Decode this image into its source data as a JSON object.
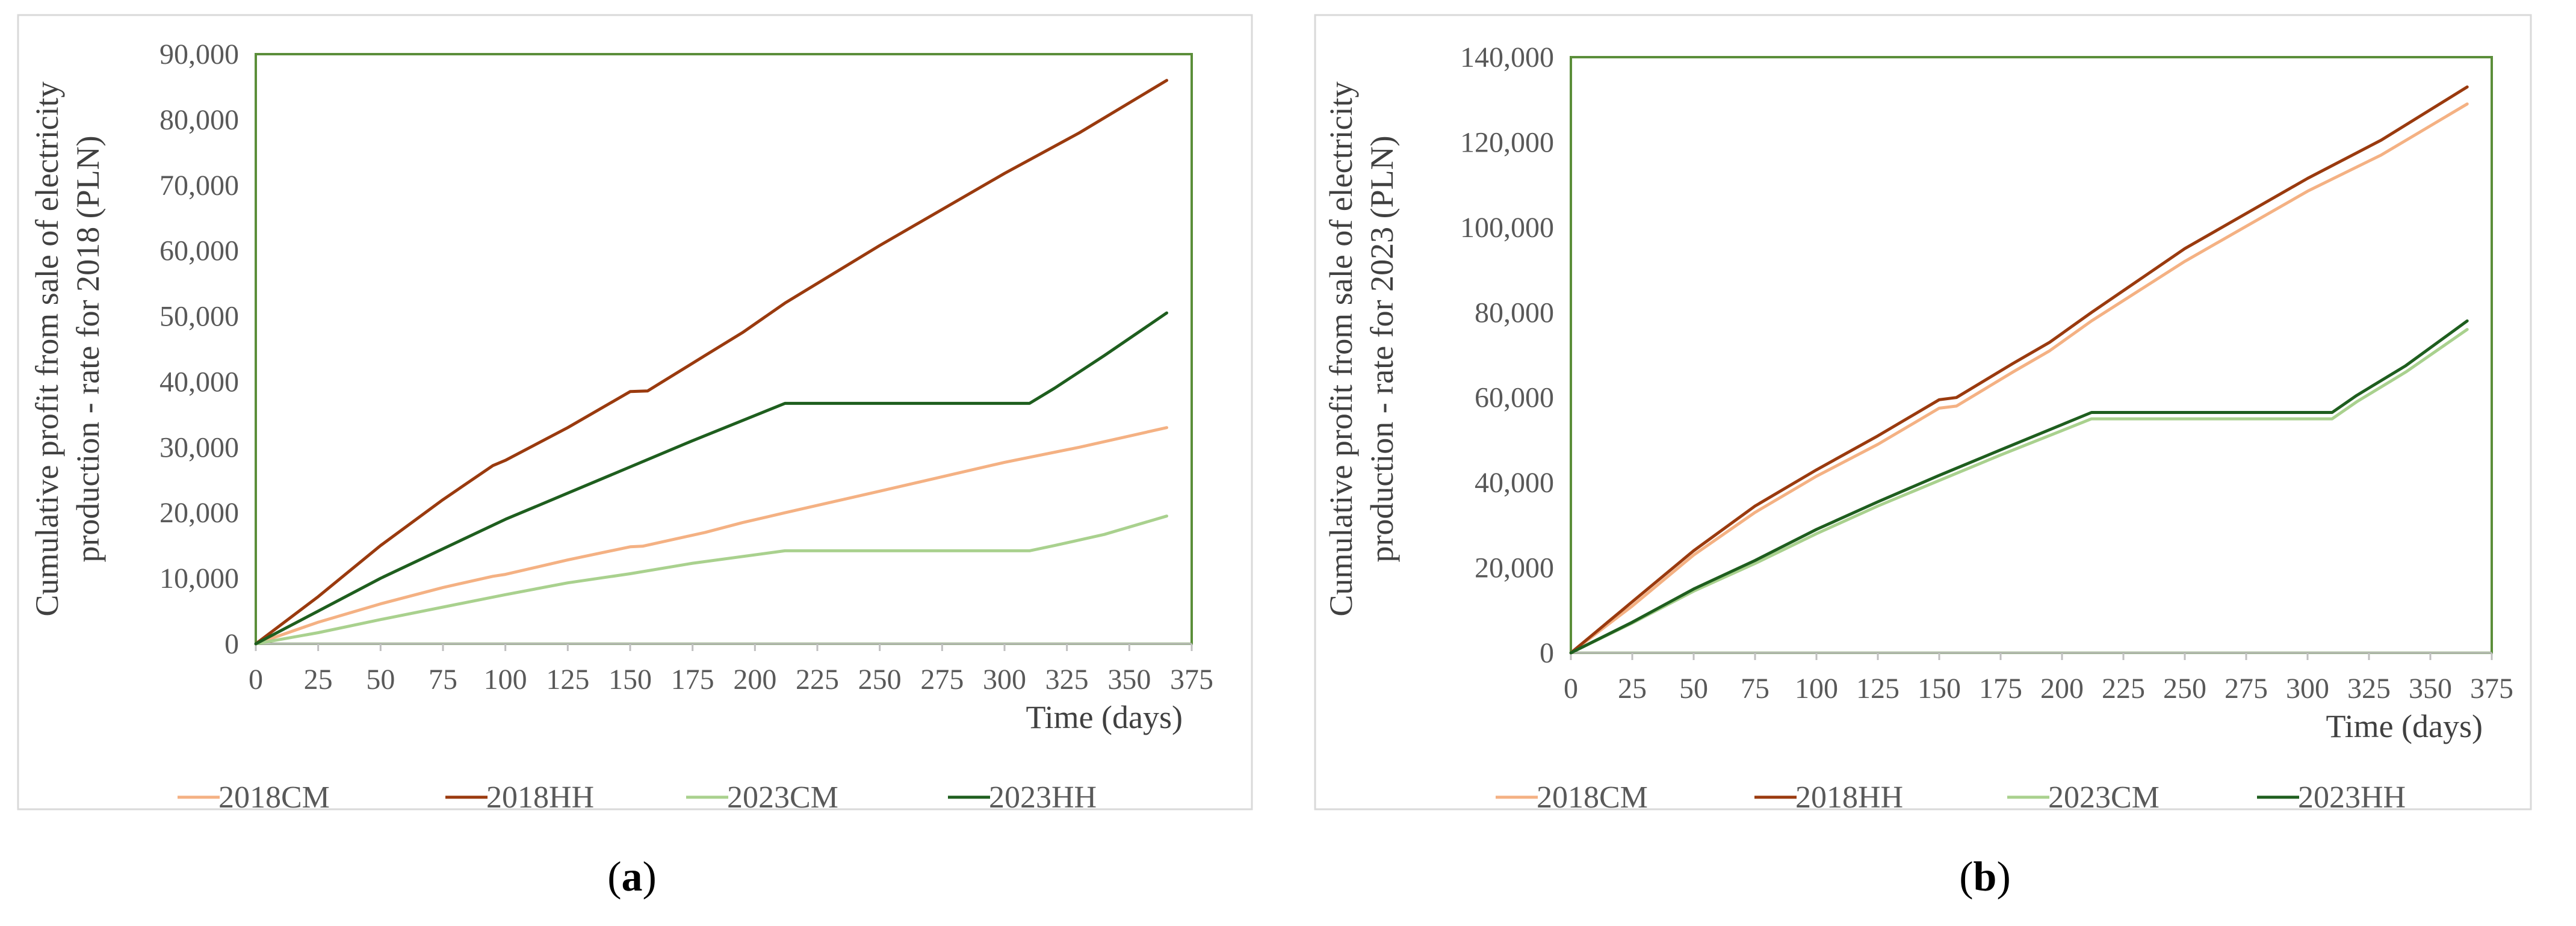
{
  "chart_data": [
    {
      "panel": "a",
      "type": "line",
      "caption_letter": "a",
      "title": "",
      "ylabel_line1": "Cumulative profit from sale of electricity",
      "ylabel_line2": "production - rate for 2018 (PLN)",
      "xlabel": "Time (days)",
      "xlim": [
        0,
        375
      ],
      "ylim": [
        0,
        90000
      ],
      "xticks": [
        0,
        25,
        50,
        75,
        100,
        125,
        150,
        175,
        200,
        225,
        250,
        275,
        300,
        325,
        350,
        375
      ],
      "xtick_labels": [
        "0",
        "25",
        "50",
        "75",
        "100",
        "125",
        "150",
        "175",
        "200",
        "225",
        "250",
        "275",
        "300",
        "325",
        "350",
        "375"
      ],
      "yticks": [
        0,
        10000,
        20000,
        30000,
        40000,
        50000,
        60000,
        70000,
        80000,
        90000
      ],
      "ytick_labels": [
        "0",
        "10,000",
        "20,000",
        "30,000",
        "40,000",
        "50,000",
        "60,000",
        "70,000",
        "80,000",
        "90,000"
      ],
      "legend_position": "bottom",
      "series": [
        {
          "name": "2018CM",
          "color": "#F4B183",
          "x": [
            0,
            25,
            50,
            75,
            95,
            100,
            125,
            150,
            155,
            180,
            195,
            212,
            250,
            300,
            330,
            365
          ],
          "y": [
            0,
            3300,
            6100,
            8600,
            10300,
            10600,
            12800,
            14800,
            14900,
            17000,
            18500,
            20000,
            23300,
            27700,
            30000,
            33000
          ]
        },
        {
          "name": "2018HH",
          "color": "#9A3A0E",
          "x": [
            0,
            25,
            50,
            75,
            95,
            100,
            125,
            150,
            157,
            180,
            195,
            212,
            250,
            300,
            330,
            365
          ],
          "y": [
            0,
            7200,
            15000,
            22000,
            27200,
            28000,
            33000,
            38500,
            38600,
            44000,
            47500,
            52000,
            60800,
            71800,
            78000,
            86000
          ]
        },
        {
          "name": "2023CM",
          "color": "#A9D18E",
          "x": [
            0,
            25,
            50,
            75,
            100,
            125,
            150,
            175,
            212,
            310,
            320,
            340,
            365
          ],
          "y": [
            0,
            1700,
            3700,
            5600,
            7500,
            9300,
            10700,
            12300,
            14200,
            14200,
            15000,
            16700,
            19500
          ]
        },
        {
          "name": "2023HH",
          "color": "#1E5E1E",
          "x": [
            0,
            25,
            50,
            75,
            100,
            125,
            150,
            175,
            212,
            310,
            320,
            340,
            365
          ],
          "y": [
            0,
            5000,
            10000,
            14500,
            19000,
            23000,
            27000,
            31000,
            36700,
            36700,
            39000,
            44000,
            50500
          ]
        }
      ],
      "colors": {
        "plot_border": "#5B8E3A",
        "axis": "#BFBFBF",
        "frame": "#D9D9D9"
      }
    },
    {
      "panel": "b",
      "type": "line",
      "caption_letter": "b",
      "title": "",
      "ylabel_line1": "Cumulative profit from sale of electricity",
      "ylabel_line2": "production - rate for 2023 (PLN)",
      "xlabel": "Time (days)",
      "xlim": [
        0,
        375
      ],
      "ylim": [
        0,
        140000
      ],
      "xticks": [
        0,
        25,
        50,
        75,
        100,
        125,
        150,
        175,
        200,
        225,
        250,
        275,
        300,
        325,
        350,
        375
      ],
      "xtick_labels": [
        "0",
        "25",
        "50",
        "75",
        "100",
        "125",
        "150",
        "175",
        "200",
        "225",
        "250",
        "275",
        "300",
        "325",
        "350",
        "375"
      ],
      "yticks": [
        0,
        20000,
        40000,
        60000,
        80000,
        100000,
        120000,
        140000
      ],
      "ytick_labels": [
        "0",
        "20,000",
        "40,000",
        "60,000",
        "80,000",
        "100,000",
        "120,000",
        "140,000"
      ],
      "legend_position": "bottom",
      "series": [
        {
          "name": "2018CM",
          "color": "#F4B183",
          "x": [
            0,
            25,
            50,
            75,
            100,
            125,
            150,
            157,
            180,
            195,
            212,
            250,
            300,
            330,
            365
          ],
          "y": [
            0,
            11000,
            23000,
            33000,
            41500,
            49000,
            57500,
            58000,
            66000,
            71000,
            78000,
            92000,
            108500,
            117000,
            129000
          ]
        },
        {
          "name": "2018HH",
          "color": "#9A3A0E",
          "x": [
            0,
            25,
            50,
            75,
            100,
            125,
            150,
            157,
            180,
            195,
            212,
            250,
            300,
            330,
            365
          ],
          "y": [
            0,
            12000,
            24000,
            34500,
            43000,
            51000,
            59500,
            60000,
            68000,
            73000,
            80000,
            95000,
            111500,
            120500,
            133000
          ]
        },
        {
          "name": "2023CM",
          "color": "#A9D18E",
          "x": [
            0,
            25,
            50,
            75,
            100,
            125,
            150,
            175,
            212,
            310,
            320,
            340,
            365
          ],
          "y": [
            0,
            7000,
            14500,
            21000,
            28000,
            34500,
            40500,
            46500,
            55000,
            55000,
            59000,
            66000,
            76000
          ]
        },
        {
          "name": "2023HH",
          "color": "#1E5E1E",
          "x": [
            0,
            25,
            50,
            75,
            100,
            125,
            150,
            175,
            212,
            310,
            320,
            340,
            365
          ],
          "y": [
            0,
            7200,
            15000,
            21700,
            29000,
            35500,
            41700,
            47700,
            56500,
            56500,
            60500,
            67500,
            78000
          ]
        }
      ],
      "colors": {
        "plot_border": "#5B8E3A",
        "axis": "#BFBFBF",
        "frame": "#D9D9D9"
      }
    }
  ]
}
